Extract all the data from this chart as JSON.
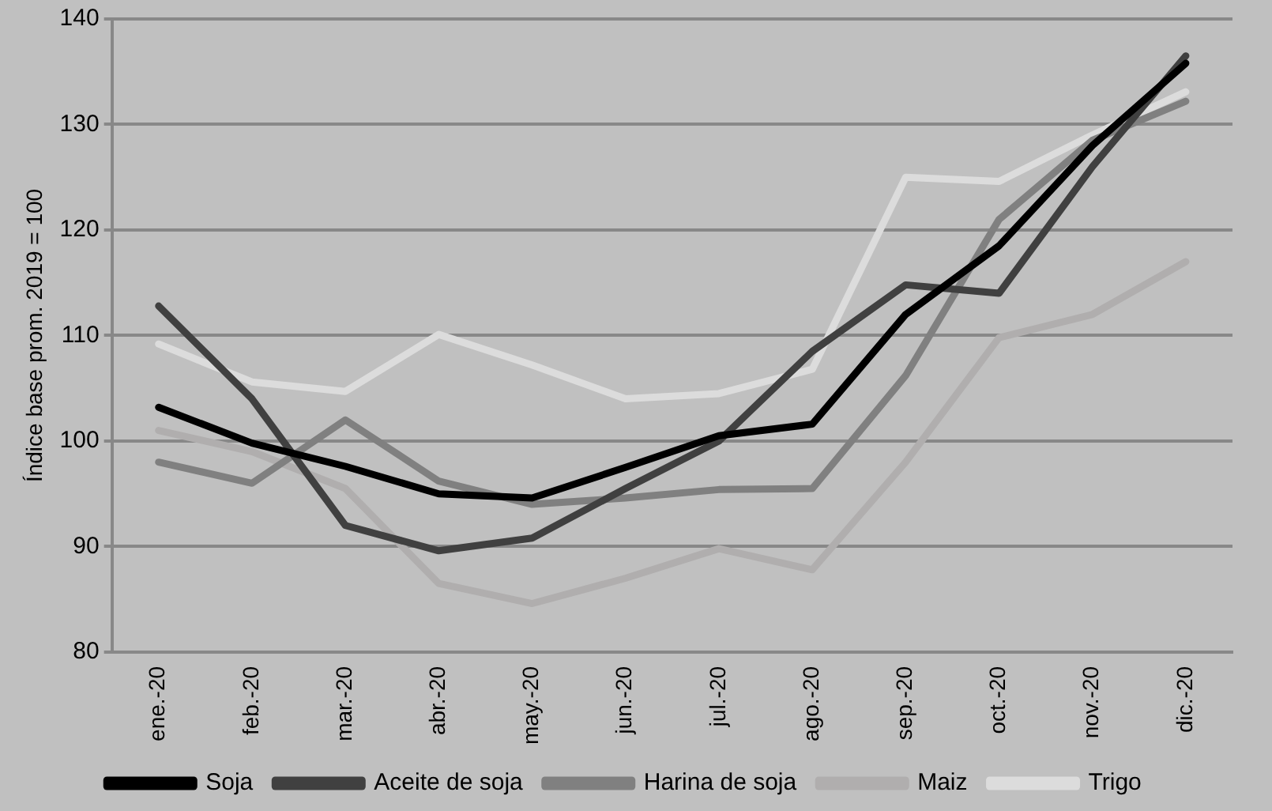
{
  "chart_data": {
    "type": "line",
    "ylabel": "Índice base prom. 2019 = 100",
    "categories": [
      "ene.-20",
      "feb.-20",
      "mar.-20",
      "abr.-20",
      "may.-20",
      "jun.-20",
      "jul.-20",
      "ago.-20",
      "sep.-20",
      "oct.-20",
      "nov.-20",
      "dic.-20"
    ],
    "series": [
      {
        "name": "Soja",
        "color": "#000000",
        "values": [
          103.2,
          99.8,
          97.6,
          95,
          94.6,
          97.5,
          100.5,
          101.6,
          112,
          118.5,
          128,
          135.8
        ]
      },
      {
        "name": "Aceite de soja",
        "color": "#404040",
        "values": [
          112.8,
          104,
          92,
          89.6,
          90.8,
          95.5,
          100,
          108.5,
          114.8,
          114,
          126,
          136.5
        ]
      },
      {
        "name": "Harina de soja",
        "color": "#808080",
        "values": [
          98,
          96,
          102,
          96.2,
          94,
          94.6,
          95.4,
          95.5,
          106.2,
          121,
          128.5,
          132.2
        ]
      },
      {
        "name": "Maiz",
        "color": "#b0aeae",
        "values": [
          101,
          99,
          95.5,
          86.5,
          84.6,
          87,
          89.8,
          87.8,
          98,
          109.8,
          112,
          117
        ]
      },
      {
        "name": "Trigo",
        "color": "#dcdcdc",
        "values": [
          109.2,
          105.6,
          104.7,
          110.1,
          107.2,
          104,
          104.5,
          106.8,
          125,
          124.6,
          129,
          133.1
        ]
      }
    ],
    "ylim": [
      80,
      140
    ],
    "yticks": [
      80,
      90,
      100,
      110,
      120,
      130,
      140
    ],
    "grid": "y",
    "legend": "bottom",
    "marker": "none",
    "line_style": "solid"
  }
}
